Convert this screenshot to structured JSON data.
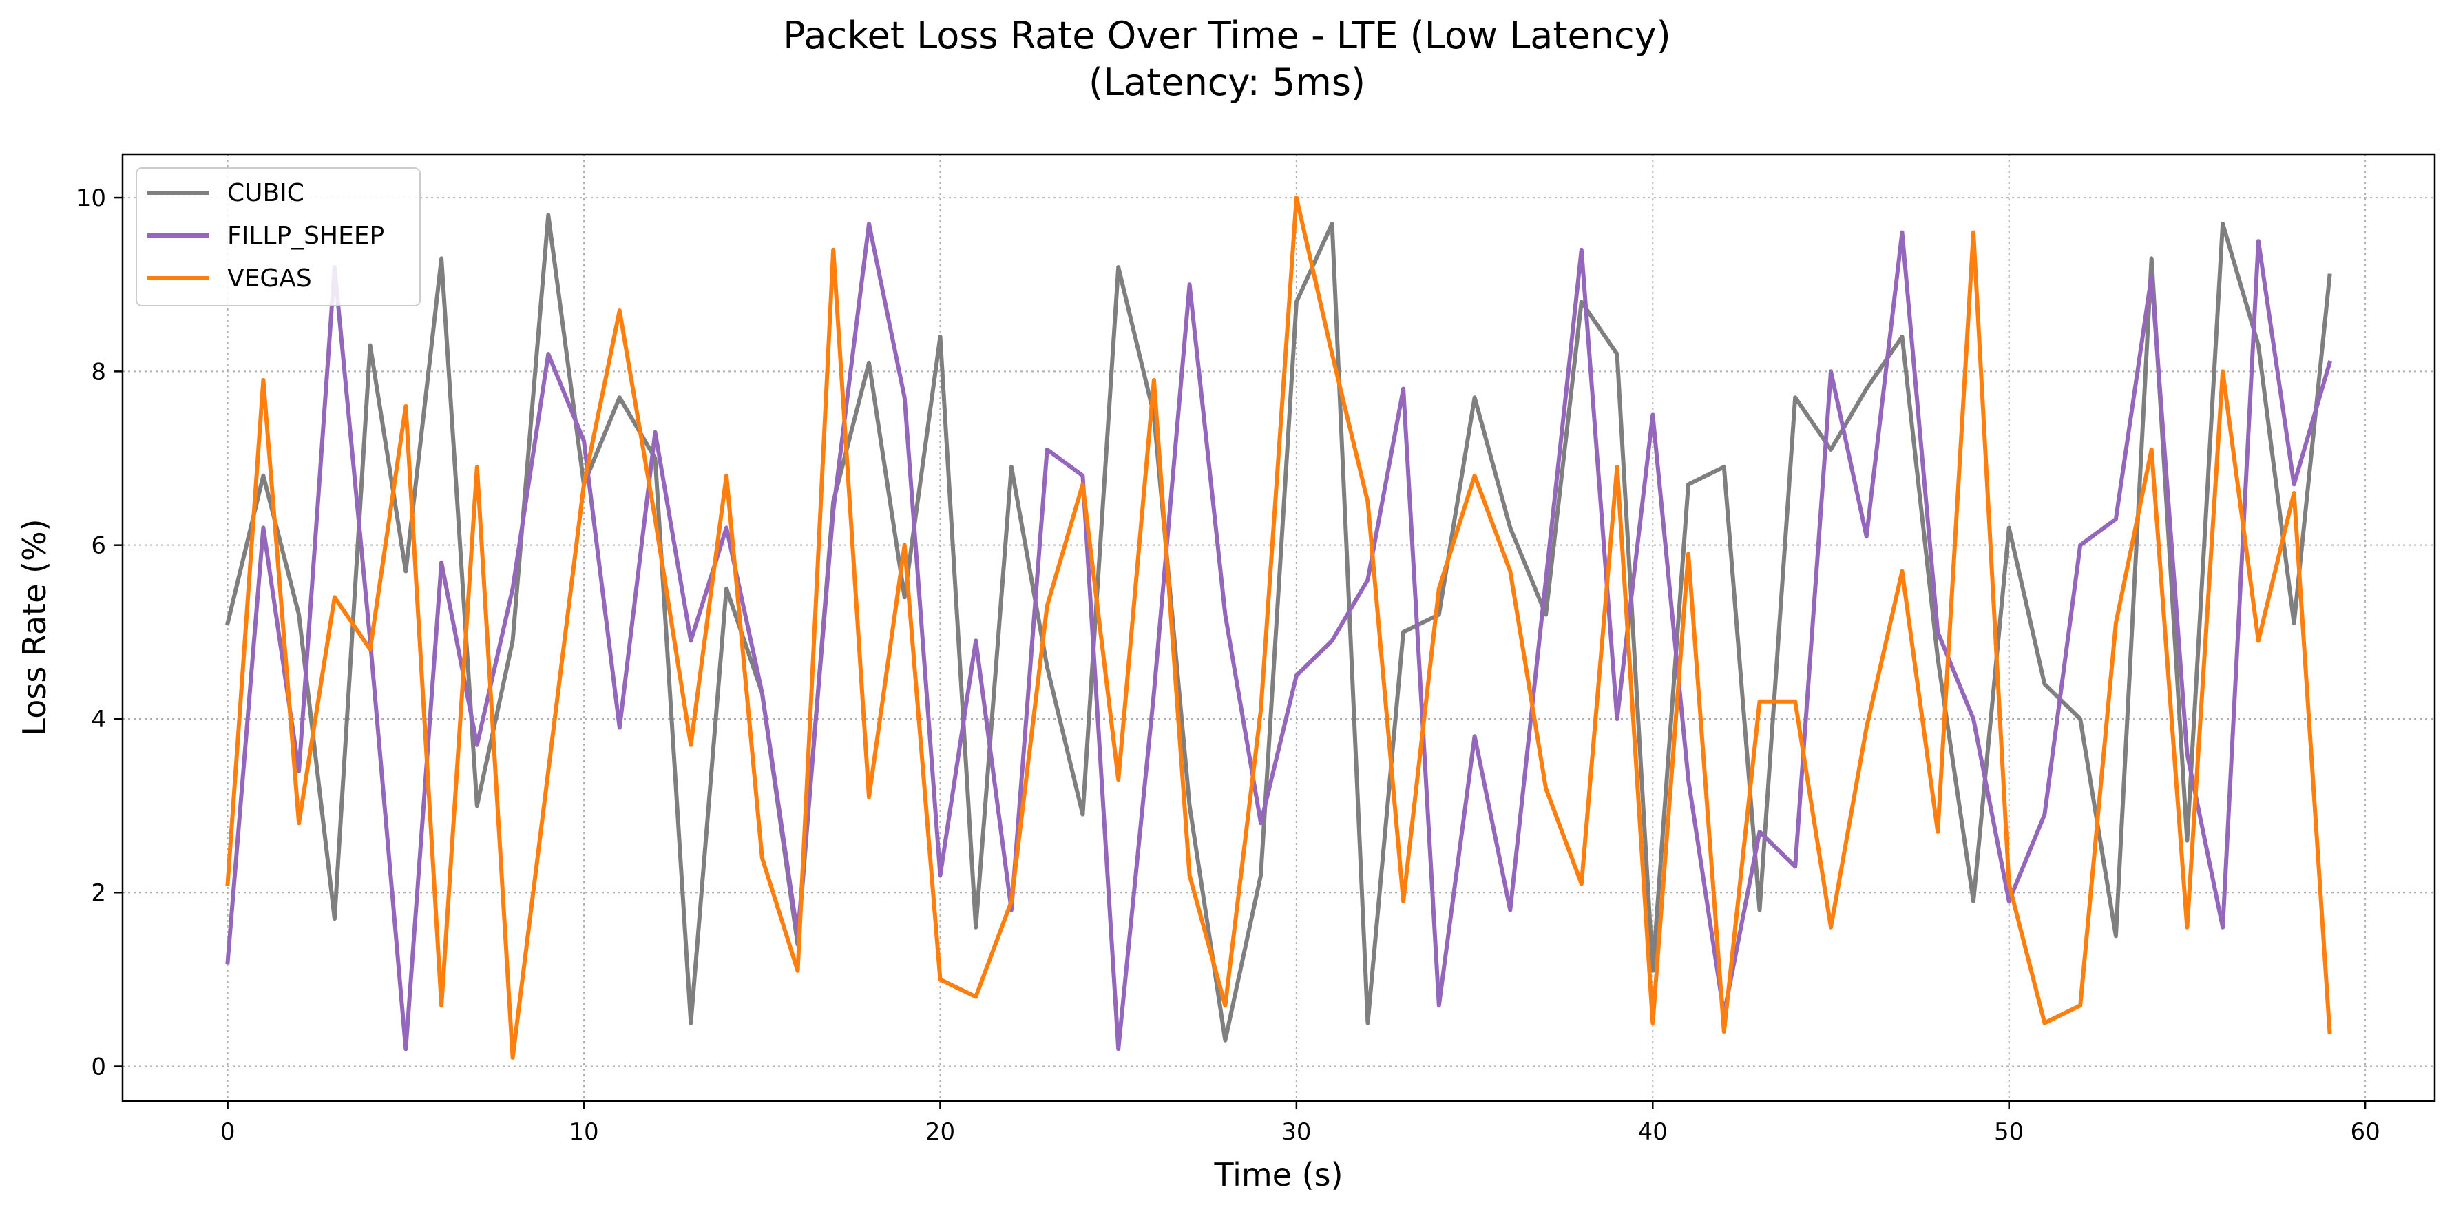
{
  "chart_data": {
    "type": "line",
    "title": "Packet Loss Rate Over Time - LTE (Low Latency)",
    "subtitle": "(Latency: 5ms)",
    "xlabel": "Time (s)",
    "ylabel": "Loss Rate (%)",
    "xlim": [
      -2.95,
      61.95
    ],
    "ylim": [
      -0.4,
      10.5
    ],
    "xticks": [
      0,
      10,
      20,
      30,
      40,
      50,
      60
    ],
    "yticks": [
      0,
      2,
      4,
      6,
      8,
      10
    ],
    "grid": true,
    "legend_position": "top-left",
    "x": [
      0,
      1,
      2,
      3,
      4,
      5,
      6,
      7,
      8,
      9,
      10,
      11,
      12,
      13,
      14,
      15,
      16,
      17,
      18,
      19,
      20,
      21,
      22,
      23,
      24,
      25,
      26,
      27,
      28,
      29,
      30,
      31,
      32,
      33,
      34,
      35,
      36,
      37,
      38,
      39,
      40,
      41,
      42,
      43,
      44,
      45,
      46,
      47,
      48,
      49,
      50,
      51,
      52,
      53,
      54,
      55,
      56,
      57,
      58,
      59
    ],
    "series": [
      {
        "name": "CUBIC",
        "color": "#7f7f7f",
        "values": [
          5.1,
          6.8,
          5.2,
          1.7,
          8.3,
          5.7,
          9.3,
          3.0,
          4.9,
          9.8,
          6.7,
          7.7,
          7.0,
          0.5,
          5.5,
          4.3,
          1.4,
          6.5,
          8.1,
          5.4,
          8.4,
          1.6,
          6.9,
          4.6,
          2.9,
          9.2,
          7.5,
          3.0,
          0.3,
          2.2,
          8.8,
          9.7,
          0.5,
          5.0,
          5.2,
          7.7,
          6.2,
          5.2,
          8.8,
          8.2,
          1.1,
          6.7,
          6.9,
          1.8,
          7.7,
          7.1,
          7.8,
          8.4,
          4.7,
          1.9,
          6.2,
          4.4,
          4.0,
          1.5,
          9.3,
          2.6,
          9.7,
          8.3,
          5.1,
          9.1
        ]
      },
      {
        "name": "FILLP_SHEEP",
        "color": "#9467bd",
        "values": [
          1.2,
          6.2,
          3.4,
          9.2,
          4.9,
          0.2,
          5.8,
          3.7,
          5.5,
          8.2,
          7.2,
          3.9,
          7.3,
          4.9,
          6.2,
          4.3,
          1.5,
          6.4,
          9.7,
          7.7,
          2.2,
          4.9,
          1.8,
          7.1,
          6.8,
          0.2,
          4.3,
          9.0,
          5.2,
          2.8,
          4.5,
          4.9,
          5.6,
          7.8,
          0.7,
          3.8,
          1.8,
          5.6,
          9.4,
          4.0,
          7.5,
          3.3,
          0.6,
          2.7,
          2.3,
          8.0,
          6.1,
          9.6,
          5.0,
          4.0,
          1.9,
          2.9,
          6.0,
          6.3,
          9.1,
          3.6,
          1.6,
          9.5,
          6.7,
          8.1
        ]
      },
      {
        "name": "VEGAS",
        "color": "#ff7f0e",
        "values": [
          2.1,
          7.9,
          2.8,
          5.4,
          4.8,
          7.6,
          0.7,
          6.9,
          0.1,
          3.4,
          6.7,
          8.7,
          6.3,
          3.7,
          6.8,
          2.4,
          1.1,
          9.4,
          3.1,
          6.0,
          1.0,
          0.8,
          1.9,
          5.3,
          6.7,
          3.3,
          7.9,
          2.2,
          0.7,
          4.1,
          10.0,
          8.2,
          6.5,
          1.9,
          5.5,
          6.8,
          5.7,
          3.2,
          2.1,
          6.9,
          0.5,
          5.9,
          0.4,
          4.2,
          4.2,
          1.6,
          3.9,
          5.7,
          2.7,
          9.6,
          2.1,
          0.5,
          0.7,
          5.1,
          7.1,
          1.6,
          8.0,
          4.9,
          6.6,
          0.4
        ]
      }
    ]
  }
}
